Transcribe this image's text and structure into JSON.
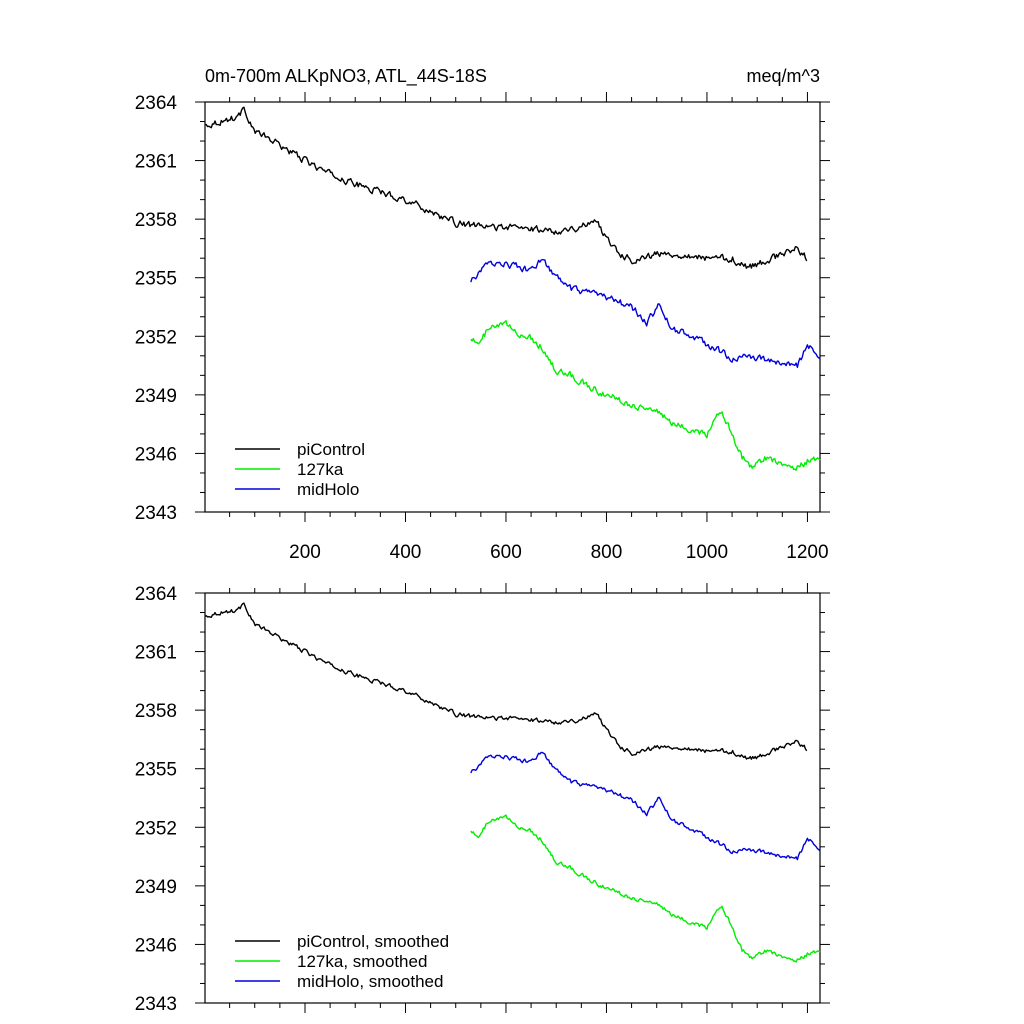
{
  "figure": {
    "title": "0m-700m ALKpNO3, ATL_44S-18S",
    "units": "meq/m^3"
  },
  "colors": {
    "piControl": "#000000",
    "127ka": "#00ee00",
    "midHolo": "#0000dd"
  },
  "chart_data": [
    {
      "type": "line",
      "title": "0m-700m ALKpNO3, ATL_44S-18S",
      "units_label": "meq/m^3",
      "xlim": [
        1,
        1225
      ],
      "ylim": [
        2343,
        2364
      ],
      "x_ticks": [
        200,
        400,
        600,
        800,
        1000,
        1200
      ],
      "x_tick_labels": [
        "200",
        "400",
        "600",
        "800",
        "1000",
        "1200"
      ],
      "y_ticks": [
        2343,
        2346,
        2349,
        2352,
        2355,
        2358,
        2361,
        2364
      ],
      "y_tick_labels": [
        "2343",
        "2346",
        "2349",
        "2352",
        "2355",
        "2358",
        "2361",
        "2364"
      ],
      "legend_position": "bottom-left",
      "series": [
        {
          "name": "piControl",
          "color": "#000000",
          "x": [
            1,
            30,
            60,
            80,
            100,
            150,
            200,
            250,
            300,
            350,
            400,
            450,
            500,
            550,
            600,
            650,
            700,
            750,
            780,
            800,
            830,
            850,
            900,
            950,
            1000,
            1050,
            1080,
            1100,
            1150,
            1180,
            1200
          ],
          "y": [
            2362.8,
            2363.0,
            2363.2,
            2363.6,
            2362.5,
            2361.8,
            2361.0,
            2360.3,
            2359.8,
            2359.4,
            2359.0,
            2358.4,
            2357.8,
            2357.6,
            2357.6,
            2357.5,
            2357.4,
            2357.6,
            2358.0,
            2357.0,
            2356.2,
            2355.9,
            2356.2,
            2356.2,
            2356.0,
            2356.0,
            2355.5,
            2355.7,
            2356.2,
            2356.5,
            2356.0
          ]
        },
        {
          "name": "127ka",
          "color": "#00ee00",
          "x": [
            530,
            545,
            560,
            580,
            600,
            620,
            650,
            670,
            700,
            730,
            760,
            800,
            850,
            900,
            930,
            960,
            1000,
            1030,
            1050,
            1070,
            1090,
            1120,
            1150,
            1180,
            1200,
            1225
          ],
          "y": [
            2352.0,
            2351.5,
            2352.2,
            2352.5,
            2352.6,
            2352.2,
            2351.9,
            2351.5,
            2350.2,
            2350.0,
            2349.5,
            2349.0,
            2348.5,
            2348.2,
            2347.5,
            2347.3,
            2347.0,
            2348.2,
            2347.0,
            2345.8,
            2345.3,
            2345.8,
            2345.5,
            2345.3,
            2345.6,
            2345.8
          ]
        },
        {
          "name": "midHolo",
          "color": "#0000dd",
          "x": [
            530,
            545,
            560,
            580,
            600,
            620,
            650,
            670,
            700,
            730,
            760,
            800,
            850,
            880,
            905,
            930,
            960,
            1000,
            1050,
            1100,
            1150,
            1180,
            1200,
            1225
          ],
          "y": [
            2354.8,
            2355.2,
            2355.6,
            2355.8,
            2355.7,
            2355.6,
            2355.3,
            2356.0,
            2355.0,
            2354.4,
            2354.2,
            2354.0,
            2353.5,
            2352.7,
            2353.6,
            2352.4,
            2352.1,
            2351.6,
            2350.9,
            2350.9,
            2350.6,
            2350.5,
            2351.5,
            2351.0
          ]
        }
      ]
    },
    {
      "type": "line",
      "xlim": [
        1,
        1225
      ],
      "ylim": [
        2343,
        2364
      ],
      "x_ticks": [
        200,
        400,
        600,
        800,
        1000,
        1200
      ],
      "y_ticks": [
        2343,
        2346,
        2349,
        2352,
        2355,
        2358,
        2361,
        2364
      ],
      "y_tick_labels": [
        "2343",
        "2346",
        "2349",
        "2352",
        "2355",
        "2358",
        "2361",
        "2364"
      ],
      "legend_position": "bottom-left",
      "series": [
        {
          "name": "piControl, smoothed",
          "color": "#000000",
          "x": [
            1,
            30,
            60,
            80,
            100,
            150,
            200,
            250,
            300,
            350,
            400,
            450,
            500,
            550,
            600,
            650,
            700,
            750,
            780,
            800,
            830,
            850,
            900,
            950,
            1000,
            1050,
            1080,
            1100,
            1150,
            1180,
            1200
          ],
          "y": [
            2362.8,
            2363.0,
            2363.1,
            2363.4,
            2362.4,
            2361.7,
            2361.0,
            2360.3,
            2359.8,
            2359.4,
            2359.0,
            2358.4,
            2357.8,
            2357.6,
            2357.6,
            2357.5,
            2357.4,
            2357.5,
            2357.9,
            2357.0,
            2356.1,
            2355.8,
            2356.1,
            2356.1,
            2355.9,
            2355.9,
            2355.5,
            2355.6,
            2356.1,
            2356.4,
            2356.0
          ]
        },
        {
          "name": "127ka, smoothed",
          "color": "#00ee00",
          "x": [
            530,
            545,
            560,
            580,
            600,
            620,
            650,
            670,
            700,
            730,
            760,
            800,
            850,
            900,
            930,
            960,
            1000,
            1030,
            1050,
            1070,
            1090,
            1120,
            1150,
            1180,
            1200,
            1225
          ],
          "y": [
            2351.9,
            2351.4,
            2352.1,
            2352.4,
            2352.5,
            2352.1,
            2351.8,
            2351.4,
            2350.2,
            2349.9,
            2349.4,
            2348.9,
            2348.4,
            2348.1,
            2347.5,
            2347.2,
            2346.9,
            2348.0,
            2346.9,
            2345.7,
            2345.3,
            2345.7,
            2345.4,
            2345.2,
            2345.5,
            2345.7
          ]
        },
        {
          "name": "midHolo, smoothed",
          "color": "#0000dd",
          "x": [
            530,
            545,
            560,
            580,
            600,
            620,
            650,
            670,
            700,
            730,
            760,
            800,
            850,
            880,
            905,
            930,
            960,
            1000,
            1050,
            1100,
            1150,
            1180,
            1200,
            1225
          ],
          "y": [
            2354.8,
            2355.1,
            2355.5,
            2355.7,
            2355.6,
            2355.5,
            2355.3,
            2355.9,
            2354.9,
            2354.3,
            2354.1,
            2353.9,
            2353.4,
            2352.7,
            2353.5,
            2352.4,
            2352.0,
            2351.5,
            2350.8,
            2350.8,
            2350.5,
            2350.4,
            2351.4,
            2350.9
          ]
        }
      ]
    }
  ]
}
